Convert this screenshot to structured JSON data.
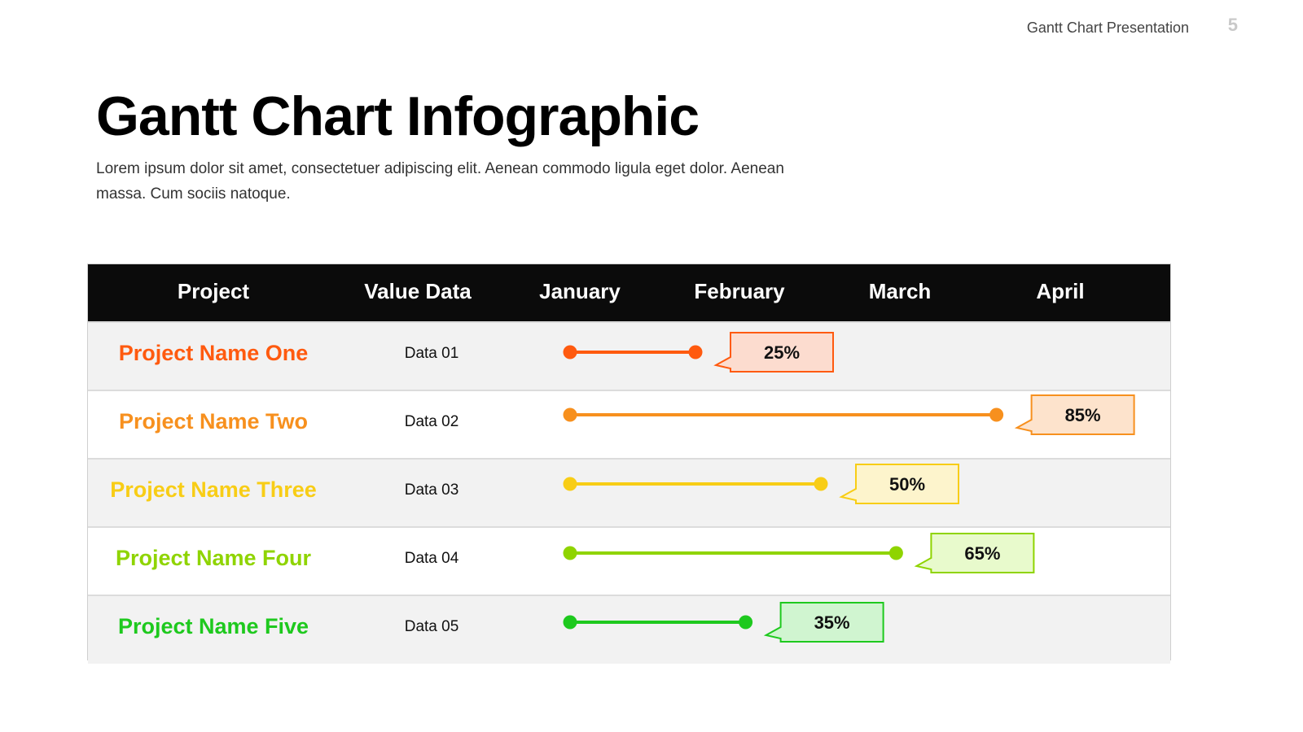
{
  "header": {
    "presentation_label": "Gantt Chart Presentation",
    "page_number": "5"
  },
  "title": "Gantt Chart Infographic",
  "subtitle": "Lorem ipsum dolor sit amet, consectetuer adipiscing elit. Aenean commodo ligula eget dolor. Aenean massa. Cum sociis natoque.",
  "chart_data": {
    "type": "table",
    "columns": [
      "Project",
      "Value Data",
      "January",
      "February",
      "March",
      "April"
    ],
    "rows": [
      {
        "project": "Project Name One",
        "data": "Data 01",
        "progress": 25,
        "label": "25%",
        "color": "#ff5a0f",
        "fill": "#fcdccf"
      },
      {
        "project": "Project Name Two",
        "data": "Data 02",
        "progress": 85,
        "label": "85%",
        "color": "#f7901e",
        "fill": "#fde3cc"
      },
      {
        "project": "Project Name Three",
        "data": "Data 03",
        "progress": 50,
        "label": "50%",
        "color": "#f8cd16",
        "fill": "#fdf4cc"
      },
      {
        "project": "Project Name Four",
        "data": "Data 04",
        "progress": 65,
        "label": "65%",
        "color": "#8fd400",
        "fill": "#e8facc"
      },
      {
        "project": "Project Name Five",
        "data": "Data 05",
        "progress": 35,
        "label": "35%",
        "color": "#1ec91e",
        "fill": "#d0f5d0"
      }
    ]
  }
}
